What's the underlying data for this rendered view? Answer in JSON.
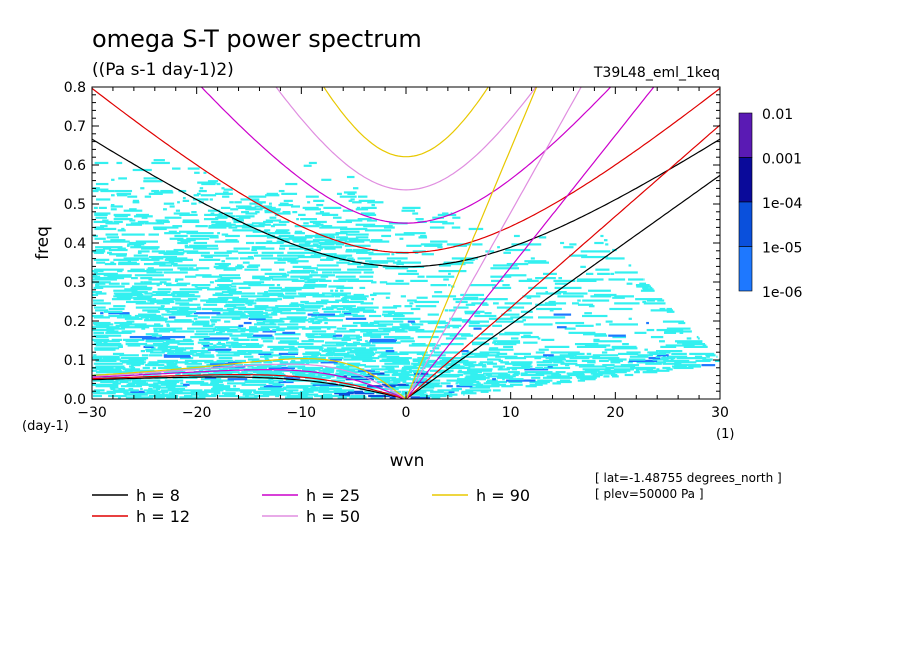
{
  "chart_data": {
    "type": "line",
    "title": "omega S-T power spectrum",
    "subtitle": "((Pa s-1 day-1)2)",
    "run_label": "T39L48_eml_1keq",
    "xlabel": "wvn",
    "ylabel": "freq",
    "x_unit": "(1)",
    "y_unit": "(day-1)",
    "xlim": [
      -30,
      30
    ],
    "ylim": [
      0,
      0.8
    ],
    "x_ticks": [
      "-30",
      "-20",
      "-10",
      "0",
      "10",
      "20",
      "30"
    ],
    "y_ticks": [
      "0.0",
      "0.1",
      "0.2",
      "0.3",
      "0.4",
      "0.5",
      "0.6",
      "0.7",
      "0.8"
    ],
    "grid": false,
    "colorbar": {
      "levels": [
        "0.01",
        "0.001",
        "1e-04",
        "1e-05",
        "1e-06"
      ],
      "colors": [
        "#5a1ab4",
        "#0a0a9a",
        "#0a50dc",
        "#1e78ff",
        "#33f0f0"
      ]
    },
    "series": [
      {
        "name": "h =  8",
        "equivalent_depth": 8,
        "color": "#000000"
      },
      {
        "name": "h = 12",
        "equivalent_depth": 12,
        "color": "#e00000"
      },
      {
        "name": "h = 25",
        "equivalent_depth": 25,
        "color": "#cc00cc"
      },
      {
        "name": "h = 50",
        "equivalent_depth": 50,
        "color": "#e08ee0"
      },
      {
        "name": "h = 90",
        "equivalent_depth": 90,
        "color": "#e8c800"
      }
    ],
    "annotations": [
      "[ lat=-1.48755 degrees_north ]",
      "[ plev=50000 Pa ]"
    ]
  }
}
